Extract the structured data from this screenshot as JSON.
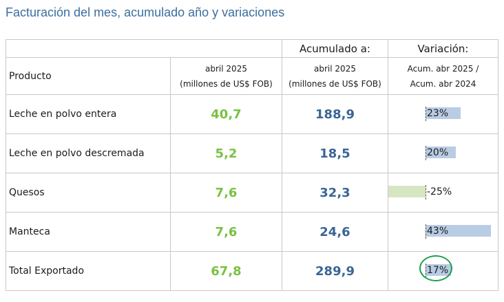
{
  "title": "Facturación del mes, acumulado año y variaciones",
  "table": {
    "header": {
      "accumulated": "Acumulado a:",
      "variation": "Variación:",
      "product": "Producto",
      "month_line1": "abril 2025",
      "month_line2": "(millones de US$ FOB)",
      "acc_line1": "abril 2025",
      "acc_line2": "(millones de US$ FOB)",
      "var_line1": "Acum. abr 2025 /",
      "var_line2": "Acum. abr 2024"
    },
    "rows": [
      {
        "product": "Leche en polvo entera",
        "month": "40,7",
        "accumulated": "188,9",
        "variation": "23%",
        "variation_value": 23
      },
      {
        "product": "Leche en polvo descremada",
        "month": "5,2",
        "accumulated": "18,5",
        "variation": "20%",
        "variation_value": 20
      },
      {
        "product": "Quesos",
        "month": "7,6",
        "accumulated": "32,3",
        "variation": "-25%",
        "variation_value": -25
      },
      {
        "product": "Manteca",
        "month": "7,6",
        "accumulated": "24,6",
        "variation": "43%",
        "variation_value": 43
      },
      {
        "product": "Total Exportado",
        "month": "67,8",
        "accumulated": "289,9",
        "variation": "17%",
        "variation_value": 17
      }
    ]
  },
  "colors": {
    "month_value": "#7ac142",
    "accumulated_value": "#3a6595",
    "positive_bar": "#b8cce4",
    "negative_bar": "#d6e6c3",
    "highlight_circle": "#19a04a"
  }
}
